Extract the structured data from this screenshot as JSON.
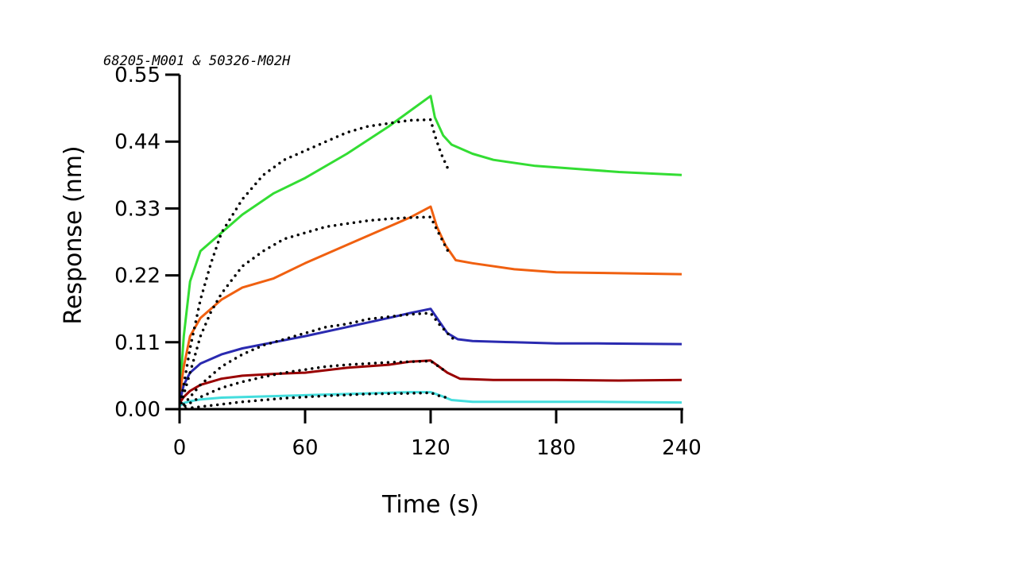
{
  "chart_data": {
    "type": "line",
    "title": "68205-M001 & 50326-M02H",
    "xlabel": "Time (s)",
    "ylabel": "Response (nm)",
    "xlim": [
      0,
      240
    ],
    "ylim": [
      0,
      0.55
    ],
    "x_ticks": [
      "0",
      "60",
      "120",
      "180",
      "240"
    ],
    "y_ticks": [
      "0.00",
      "0.11",
      "0.22",
      "0.33",
      "0.44",
      "0.55"
    ],
    "x_tick_values": [
      0,
      60,
      120,
      180,
      240
    ],
    "y_tick_values": [
      0,
      0.11,
      0.22,
      0.33,
      0.44,
      0.55
    ],
    "grid": false,
    "series": [
      {
        "color": "#33dd33",
        "style": "solid",
        "points": [
          [
            0,
            0.02
          ],
          [
            2,
            0.12
          ],
          [
            5,
            0.21
          ],
          [
            10,
            0.26
          ],
          [
            20,
            0.29
          ],
          [
            30,
            0.32
          ],
          [
            45,
            0.355
          ],
          [
            60,
            0.38
          ],
          [
            80,
            0.42
          ],
          [
            100,
            0.465
          ],
          [
            110,
            0.49
          ],
          [
            120,
            0.515
          ],
          [
            122,
            0.48
          ],
          [
            126,
            0.45
          ],
          [
            130,
            0.435
          ],
          [
            140,
            0.42
          ],
          [
            150,
            0.41
          ],
          [
            170,
            0.4
          ],
          [
            190,
            0.395
          ],
          [
            210,
            0.39
          ],
          [
            240,
            0.385
          ]
        ]
      },
      {
        "color": "#f06010",
        "style": "solid",
        "points": [
          [
            0,
            0.02
          ],
          [
            2,
            0.07
          ],
          [
            5,
            0.12
          ],
          [
            10,
            0.15
          ],
          [
            20,
            0.18
          ],
          [
            30,
            0.2
          ],
          [
            45,
            0.215
          ],
          [
            60,
            0.24
          ],
          [
            80,
            0.27
          ],
          [
            100,
            0.3
          ],
          [
            110,
            0.315
          ],
          [
            120,
            0.333
          ],
          [
            123,
            0.3
          ],
          [
            127,
            0.27
          ],
          [
            132,
            0.245
          ],
          [
            140,
            0.24
          ],
          [
            160,
            0.23
          ],
          [
            180,
            0.225
          ],
          [
            200,
            0.224
          ],
          [
            240,
            0.222
          ]
        ]
      },
      {
        "color": "#2a2ab0",
        "style": "solid",
        "points": [
          [
            0,
            0.01
          ],
          [
            2,
            0.04
          ],
          [
            5,
            0.06
          ],
          [
            10,
            0.075
          ],
          [
            20,
            0.09
          ],
          [
            30,
            0.1
          ],
          [
            45,
            0.11
          ],
          [
            60,
            0.12
          ],
          [
            80,
            0.135
          ],
          [
            100,
            0.15
          ],
          [
            110,
            0.158
          ],
          [
            120,
            0.165
          ],
          [
            124,
            0.145
          ],
          [
            128,
            0.125
          ],
          [
            133,
            0.115
          ],
          [
            140,
            0.112
          ],
          [
            160,
            0.11
          ],
          [
            180,
            0.108
          ],
          [
            200,
            0.108
          ],
          [
            240,
            0.107
          ]
        ]
      },
      {
        "color": "#990000",
        "style": "solid",
        "points": [
          [
            0,
            0.01
          ],
          [
            2,
            0.02
          ],
          [
            5,
            0.03
          ],
          [
            10,
            0.04
          ],
          [
            20,
            0.05
          ],
          [
            30,
            0.055
          ],
          [
            45,
            0.058
          ],
          [
            60,
            0.06
          ],
          [
            80,
            0.068
          ],
          [
            100,
            0.073
          ],
          [
            110,
            0.078
          ],
          [
            120,
            0.08
          ],
          [
            124,
            0.07
          ],
          [
            128,
            0.06
          ],
          [
            134,
            0.05
          ],
          [
            150,
            0.048
          ],
          [
            180,
            0.048
          ],
          [
            210,
            0.047
          ],
          [
            240,
            0.048
          ]
        ]
      },
      {
        "color": "#44dddd",
        "style": "solid",
        "points": [
          [
            0,
            0.005
          ],
          [
            2,
            0.01
          ],
          [
            5,
            0.013
          ],
          [
            10,
            0.016
          ],
          [
            20,
            0.019
          ],
          [
            30,
            0.02
          ],
          [
            60,
            0.023
          ],
          [
            90,
            0.026
          ],
          [
            110,
            0.028
          ],
          [
            120,
            0.028
          ],
          [
            125,
            0.022
          ],
          [
            130,
            0.015
          ],
          [
            140,
            0.012
          ],
          [
            160,
            0.012
          ],
          [
            200,
            0.012
          ],
          [
            240,
            0.011
          ]
        ]
      },
      {
        "color": "#000000",
        "style": "dotted",
        "points": [
          [
            0,
            0.0
          ],
          [
            5,
            0.1
          ],
          [
            10,
            0.18
          ],
          [
            15,
            0.24
          ],
          [
            20,
            0.29
          ],
          [
            30,
            0.345
          ],
          [
            40,
            0.385
          ],
          [
            50,
            0.41
          ],
          [
            60,
            0.425
          ],
          [
            70,
            0.44
          ],
          [
            80,
            0.455
          ],
          [
            90,
            0.465
          ],
          [
            100,
            0.47
          ],
          [
            110,
            0.475
          ],
          [
            120,
            0.476
          ],
          [
            122,
            0.45
          ],
          [
            125,
            0.42
          ],
          [
            129,
            0.39
          ]
        ]
      },
      {
        "color": "#000000",
        "style": "dotted",
        "points": [
          [
            0,
            0.0
          ],
          [
            5,
            0.06
          ],
          [
            10,
            0.12
          ],
          [
            15,
            0.16
          ],
          [
            20,
            0.19
          ],
          [
            30,
            0.235
          ],
          [
            40,
            0.26
          ],
          [
            50,
            0.28
          ],
          [
            60,
            0.29
          ],
          [
            70,
            0.3
          ],
          [
            80,
            0.305
          ],
          [
            90,
            0.31
          ],
          [
            100,
            0.313
          ],
          [
            110,
            0.315
          ],
          [
            120,
            0.316
          ],
          [
            123,
            0.295
          ],
          [
            126,
            0.275
          ],
          [
            129,
            0.255
          ]
        ]
      },
      {
        "color": "#000000",
        "style": "dotted",
        "points": [
          [
            0,
            0.0
          ],
          [
            5,
            0.02
          ],
          [
            10,
            0.04
          ],
          [
            20,
            0.07
          ],
          [
            30,
            0.09
          ],
          [
            40,
            0.105
          ],
          [
            50,
            0.115
          ],
          [
            60,
            0.125
          ],
          [
            70,
            0.135
          ],
          [
            80,
            0.14
          ],
          [
            90,
            0.148
          ],
          [
            100,
            0.152
          ],
          [
            110,
            0.156
          ],
          [
            120,
            0.158
          ],
          [
            124,
            0.14
          ],
          [
            128,
            0.125
          ],
          [
            131,
            0.115
          ]
        ]
      },
      {
        "color": "#000000",
        "style": "dotted",
        "points": [
          [
            0,
            0.0
          ],
          [
            5,
            0.01
          ],
          [
            10,
            0.02
          ],
          [
            20,
            0.035
          ],
          [
            30,
            0.045
          ],
          [
            40,
            0.053
          ],
          [
            50,
            0.06
          ],
          [
            60,
            0.065
          ],
          [
            70,
            0.07
          ],
          [
            80,
            0.073
          ],
          [
            90,
            0.075
          ],
          [
            100,
            0.077
          ],
          [
            110,
            0.078
          ],
          [
            120,
            0.079
          ],
          [
            124,
            0.07
          ],
          [
            128,
            0.06
          ]
        ]
      },
      {
        "color": "#000000",
        "style": "dotted",
        "points": [
          [
            0,
            0.0
          ],
          [
            5,
            0.002
          ],
          [
            10,
            0.004
          ],
          [
            20,
            0.008
          ],
          [
            30,
            0.012
          ],
          [
            50,
            0.018
          ],
          [
            70,
            0.022
          ],
          [
            90,
            0.025
          ],
          [
            110,
            0.026
          ],
          [
            120,
            0.027
          ],
          [
            124,
            0.022
          ],
          [
            129,
            0.018
          ]
        ]
      }
    ]
  }
}
